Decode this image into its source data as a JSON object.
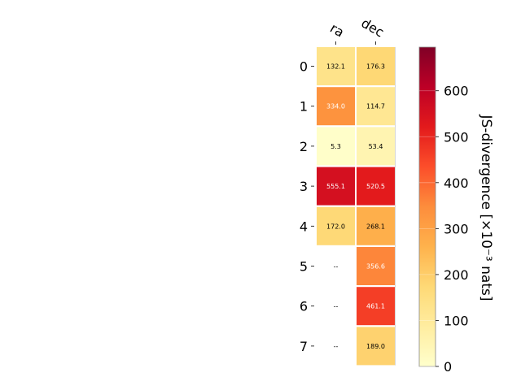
{
  "chart_data": {
    "type": "heatmap",
    "columns": [
      "ra",
      "dec"
    ],
    "rows": [
      "0",
      "1",
      "2",
      "3",
      "4",
      "5",
      "6",
      "7"
    ],
    "values": [
      [
        132.1,
        176.3
      ],
      [
        334.0,
        114.7
      ],
      [
        5.3,
        53.4
      ],
      [
        555.1,
        520.5
      ],
      [
        172.0,
        268.1
      ],
      [
        null,
        356.6
      ],
      [
        null,
        461.1
      ],
      [
        null,
        189.0
      ]
    ],
    "cell_labels": [
      [
        "132.1",
        "176.3"
      ],
      [
        "334.0",
        "114.7"
      ],
      [
        "5.3",
        "53.4"
      ],
      [
        "555.1",
        "520.5"
      ],
      [
        "172.0",
        "268.1"
      ],
      [
        "--",
        "356.6"
      ],
      [
        "--",
        "461.1"
      ],
      [
        "--",
        "189.0"
      ]
    ],
    "colorbar": {
      "label": "JS-divergence [×10⁻³ nats]",
      "min": 0,
      "max": 695,
      "ticks": [
        0,
        100,
        200,
        300,
        400,
        500,
        600
      ],
      "colormap": "YlOrRd"
    },
    "missing_value_label": "--",
    "grid": false
  }
}
